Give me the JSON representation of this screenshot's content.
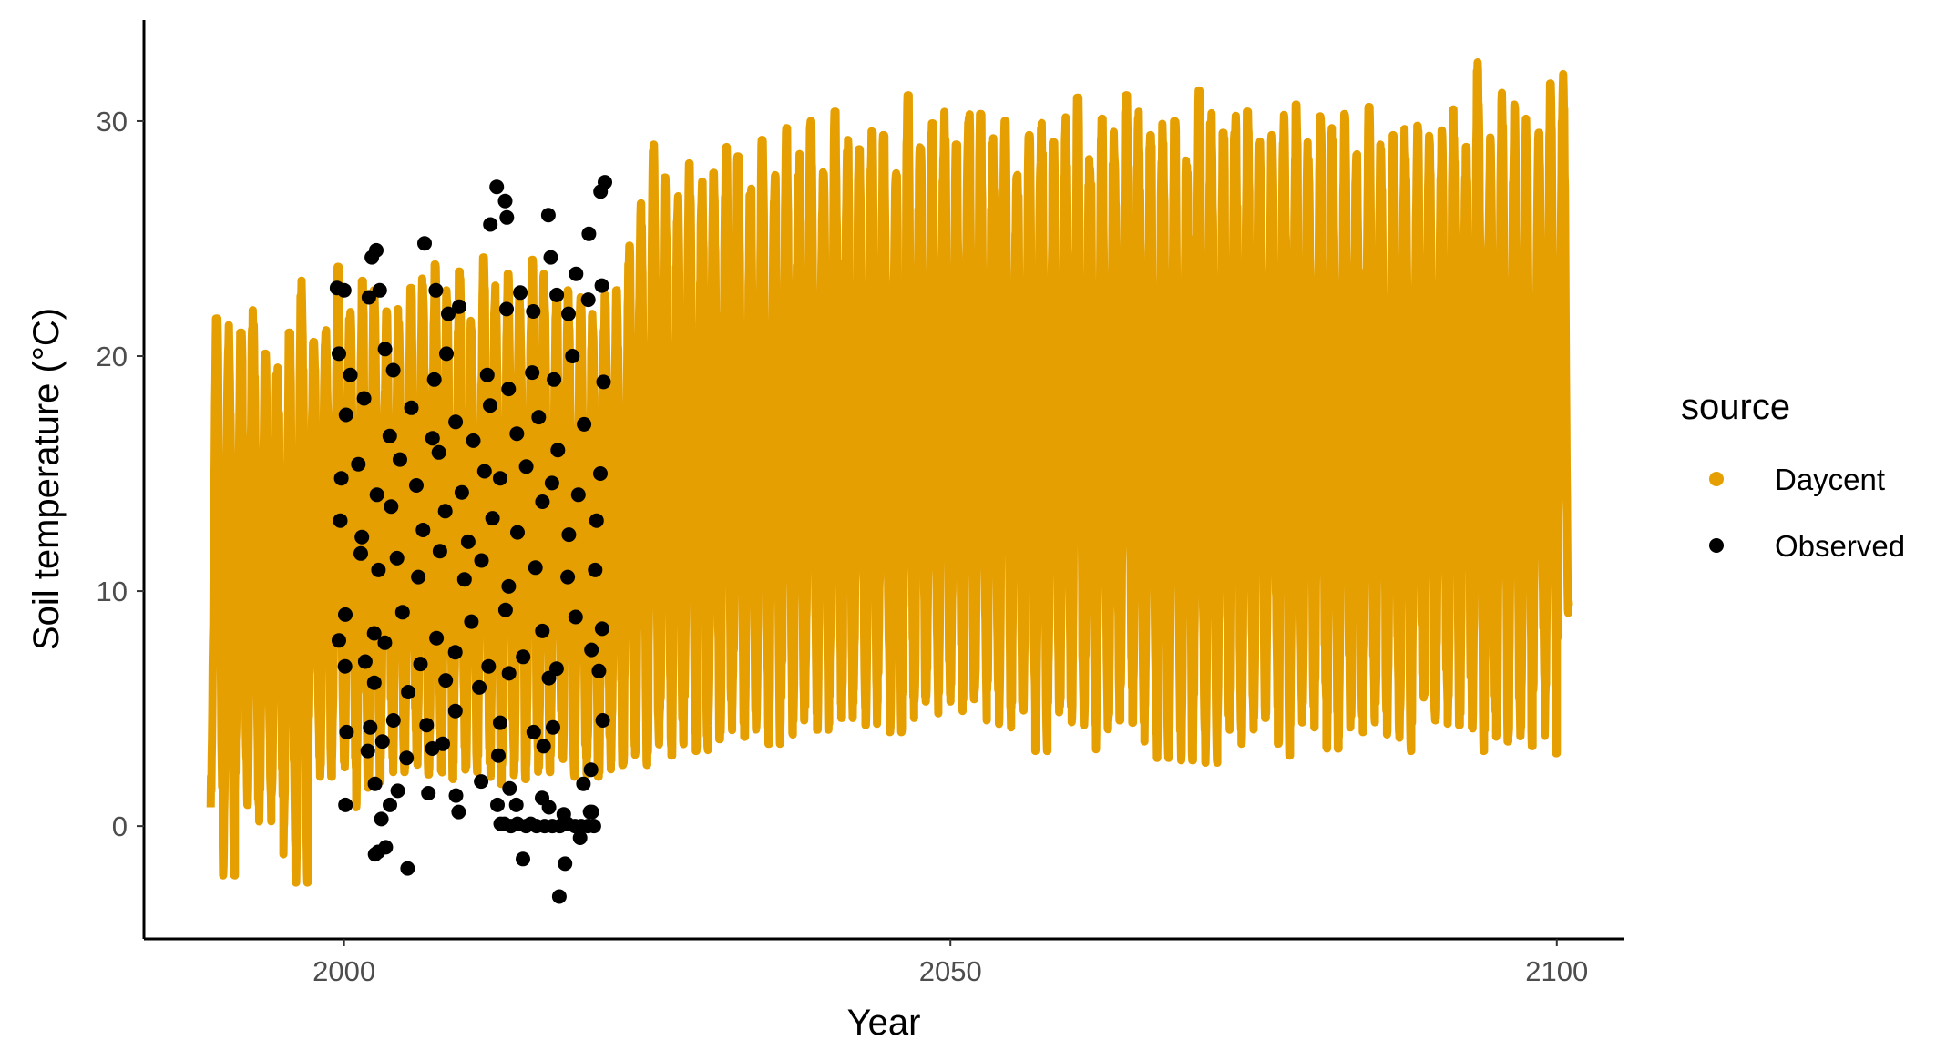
{
  "chart_data": {
    "type": "line",
    "xlabel": "Year",
    "ylabel": "Soil temperature (°C)",
    "xlim": [
      1983.5,
      2105.5
    ],
    "ylim": [
      -4.8,
      34.3
    ],
    "x_ticks": [
      2000,
      2050,
      2100
    ],
    "y_ticks": [
      0,
      10,
      20,
      30
    ],
    "x_tick_labels": [
      "2000",
      "2050",
      "2100"
    ],
    "y_tick_labels": [
      "0",
      "10",
      "20",
      "30"
    ],
    "grid": false,
    "legend": {
      "title": "source",
      "position": "right"
    },
    "series": [
      {
        "name": "Daycent",
        "color": "#E69F00",
        "kind": "daily seasonal line (yearly min/max envelope)",
        "x_start": 1989,
        "x_end": 2100,
        "yearly_min": [
          0.8,
          -2.1,
          1.5,
          0.9,
          0.2,
          1.3,
          -1.2,
          -2.4,
          2.4,
          2.1,
          2.7,
          2.5,
          0.8,
          1.9,
          2.9,
          2.3,
          2.5,
          2.2,
          2.4,
          2.0,
          2.7,
          2.3,
          3.0,
          1.8,
          2.6,
          2.0,
          2.6,
          2.3,
          3.0,
          2.2,
          2.1,
          2.1,
          2.3,
          2.6,
          2.7,
          2.6,
          3.1,
          3.4,
          3.0,
          3.9,
          3.2,
          3.7,
          4.0,
          4.4,
          3.8,
          4.2,
          3.5,
          3.9,
          4.5,
          4.8,
          4.1,
          5.2,
          4.6,
          5.0,
          4.3,
          5.5,
          4.0,
          4.6,
          5.3,
          4.8,
          5.6,
          4.9,
          5.4,
          4.5,
          5.8,
          4.2,
          5.0,
          4.7,
          3.2,
          4.4,
          5.1,
          4.1,
          4.3,
          3.1,
          4.5,
          5.2,
          4.4,
          3.6,
          2.9,
          3.2,
          2.8,
          3.4,
          2.7,
          3.9,
          4.1,
          3.5,
          4.6,
          4.8,
          3.0,
          4.3,
          5.1,
          4.2,
          3.3,
          3.8,
          4.7,
          4.0,
          4.9,
          3.9,
          3.2,
          4.4,
          4.5,
          4.6,
          4.3,
          4.8,
          3.2,
          4.1,
          3.6,
          3.8,
          3.4,
          5.8,
          3.1,
          8.0
        ],
        "yearly_max": [
          21.6,
          21.5,
          21.0,
          22.2,
          20.1,
          19.8,
          21.0,
          23.5,
          20.6,
          21.5,
          23.8,
          22.5,
          23.2,
          22.8,
          21.9,
          22.0,
          22.9,
          23.3,
          23.9,
          22.8,
          23.6,
          21.5,
          24.2,
          23.0,
          23.5,
          22.5,
          24.1,
          23.5,
          22.5,
          22.8,
          22.5,
          21.8,
          22.6,
          22.8,
          24.7,
          26.5,
          29.0,
          27.6,
          26.8,
          28.2,
          27.5,
          27.8,
          28.9,
          28.5,
          27.6,
          29.2,
          28.0,
          29.7,
          28.6,
          30.0,
          28.3,
          30.4,
          29.2,
          28.8,
          29.8,
          29.4,
          28.5,
          31.1,
          29.6,
          29.9,
          30.5,
          29.0,
          31.2,
          30.3,
          29.5,
          30.0,
          28.6,
          29.4,
          30.2,
          29.1,
          30.5,
          31.0,
          29.3,
          30.1,
          29.8,
          31.1,
          30.8,
          29.4,
          30.2,
          30.0,
          29.2,
          31.3,
          30.6,
          29.5,
          30.8,
          30.4,
          29.8,
          29.4,
          30.5,
          30.7,
          29.1,
          30.2,
          29.7,
          30.3,
          28.9,
          30.6,
          29.0,
          29.4,
          30.0,
          29.8,
          29.5,
          29.6,
          30.5,
          28.9,
          32.5,
          29.3,
          31.2,
          30.7,
          30.1,
          29.5,
          31.6,
          32.0
        ]
      },
      {
        "name": "Observed",
        "color": "#000000",
        "kind": "points",
        "points": [
          [
            2012.59,
            27.2
          ],
          [
            2013.29,
            26.6
          ],
          [
            2013.42,
            25.9
          ],
          [
            2012.06,
            25.6
          ],
          [
            2016.85,
            26.0
          ],
          [
            2021.51,
            27.4
          ],
          [
            2021.15,
            27.0
          ],
          [
            2020.19,
            25.2
          ],
          [
            2006.64,
            24.8
          ],
          [
            2002.29,
            24.2
          ],
          [
            2002.66,
            24.5
          ],
          [
            2017.04,
            24.2
          ],
          [
            1999.42,
            22.9
          ],
          [
            2000.01,
            22.8
          ],
          [
            2002.05,
            22.5
          ],
          [
            2002.94,
            22.8
          ],
          [
            2007.57,
            22.8
          ],
          [
            2008.59,
            21.8
          ],
          [
            2009.49,
            22.1
          ],
          [
            2013.4,
            22.0
          ],
          [
            2014.53,
            22.7
          ],
          [
            2015.6,
            21.9
          ],
          [
            2017.54,
            22.6
          ],
          [
            2019.13,
            23.5
          ],
          [
            2021.26,
            23.0
          ],
          [
            2020.14,
            22.4
          ],
          [
            2018.51,
            21.8
          ],
          [
            1999.58,
            20.1
          ],
          [
            2000.52,
            19.2
          ],
          [
            2003.38,
            20.3
          ],
          [
            2004.05,
            19.4
          ],
          [
            2007.44,
            19.0
          ],
          [
            2008.44,
            20.1
          ],
          [
            2011.81,
            19.2
          ],
          [
            2013.57,
            18.6
          ],
          [
            2015.52,
            19.3
          ],
          [
            2017.31,
            19.0
          ],
          [
            2018.83,
            20.0
          ],
          [
            2021.4,
            18.9
          ],
          [
            2000.16,
            17.5
          ],
          [
            2001.65,
            18.2
          ],
          [
            2003.77,
            16.6
          ],
          [
            2005.55,
            17.8
          ],
          [
            2007.3,
            16.5
          ],
          [
            2009.2,
            17.2
          ],
          [
            2010.66,
            16.4
          ],
          [
            2012.05,
            17.9
          ],
          [
            2014.25,
            16.7
          ],
          [
            2016.05,
            17.4
          ],
          [
            2017.63,
            16.0
          ],
          [
            2019.79,
            17.1
          ],
          [
            1999.77,
            14.8
          ],
          [
            2001.18,
            15.4
          ],
          [
            2002.71,
            14.1
          ],
          [
            2004.61,
            15.6
          ],
          [
            2005.96,
            14.5
          ],
          [
            2007.82,
            15.9
          ],
          [
            2009.71,
            14.2
          ],
          [
            2011.58,
            15.1
          ],
          [
            2012.87,
            14.8
          ],
          [
            2015.02,
            15.3
          ],
          [
            2017.15,
            14.6
          ],
          [
            2019.32,
            14.1
          ],
          [
            2021.14,
            15.0
          ],
          [
            1999.69,
            13.0
          ],
          [
            2001.47,
            12.3
          ],
          [
            2003.88,
            13.6
          ],
          [
            2006.51,
            12.6
          ],
          [
            2008.34,
            13.4
          ],
          [
            2010.24,
            12.1
          ],
          [
            2012.24,
            13.1
          ],
          [
            2014.3,
            12.5
          ],
          [
            2016.36,
            13.8
          ],
          [
            2018.54,
            12.4
          ],
          [
            2020.82,
            13.0
          ],
          [
            2001.38,
            11.6
          ],
          [
            2002.84,
            10.9
          ],
          [
            2004.36,
            11.4
          ],
          [
            2006.12,
            10.6
          ],
          [
            2007.91,
            11.7
          ],
          [
            2009.93,
            10.5
          ],
          [
            2011.33,
            11.3
          ],
          [
            2013.58,
            10.2
          ],
          [
            2015.78,
            11.0
          ],
          [
            2018.44,
            10.6
          ],
          [
            2020.71,
            10.9
          ],
          [
            2000.1,
            9.0
          ],
          [
            2002.48,
            8.2
          ],
          [
            2004.82,
            9.1
          ],
          [
            2007.62,
            8.0
          ],
          [
            2010.5,
            8.7
          ],
          [
            2013.32,
            9.2
          ],
          [
            2016.35,
            8.3
          ],
          [
            2019.09,
            8.9
          ],
          [
            2021.28,
            8.4
          ],
          [
            1999.58,
            7.9
          ],
          [
            2001.75,
            7.0
          ],
          [
            2003.36,
            7.8
          ],
          [
            2006.3,
            6.9
          ],
          [
            2009.17,
            7.4
          ],
          [
            2011.92,
            6.8
          ],
          [
            2014.77,
            7.2
          ],
          [
            2017.52,
            6.7
          ],
          [
            2020.4,
            7.5
          ],
          [
            2000.08,
            6.8
          ],
          [
            2002.49,
            6.1
          ],
          [
            2005.29,
            5.7
          ],
          [
            2008.38,
            6.2
          ],
          [
            2011.15,
            5.9
          ],
          [
            2013.6,
            6.5
          ],
          [
            2016.89,
            6.3
          ],
          [
            2021.02,
            6.6
          ],
          [
            2000.21,
            4.0
          ],
          [
            2002.15,
            4.2
          ],
          [
            2004.07,
            4.5
          ],
          [
            2006.81,
            4.3
          ],
          [
            2009.18,
            4.9
          ],
          [
            2012.87,
            4.4
          ],
          [
            2015.64,
            4.0
          ],
          [
            2017.23,
            4.2
          ],
          [
            2021.33,
            4.5
          ],
          [
            2001.96,
            3.2
          ],
          [
            2003.17,
            3.6
          ],
          [
            2005.15,
            2.9
          ],
          [
            2007.28,
            3.3
          ],
          [
            2008.14,
            3.5
          ],
          [
            2012.72,
            3.0
          ],
          [
            2016.46,
            3.4
          ],
          [
            2002.55,
            1.8
          ],
          [
            2004.43,
            1.5
          ],
          [
            2006.95,
            1.4
          ],
          [
            2009.23,
            1.3
          ],
          [
            2011.3,
            1.9
          ],
          [
            2013.65,
            1.6
          ],
          [
            2016.33,
            1.2
          ],
          [
            2019.74,
            1.8
          ],
          [
            2020.36,
            2.4
          ],
          [
            2000.12,
            0.9
          ],
          [
            2003.78,
            0.9
          ],
          [
            2009.45,
            0.6
          ],
          [
            2014.2,
            0.9
          ],
          [
            2016.9,
            0.8
          ],
          [
            2018.12,
            0.5
          ],
          [
            2020.29,
            0.6
          ],
          [
            2003.08,
            0.3
          ],
          [
            2012.91,
            0.1
          ],
          [
            2013.22,
            0.1
          ],
          [
            2013.76,
            0.0
          ],
          [
            2014.3,
            0.1
          ],
          [
            2015.01,
            0.0
          ],
          [
            2015.39,
            0.1
          ],
          [
            2015.87,
            0.0
          ],
          [
            2016.54,
            0.0
          ],
          [
            2017.18,
            0.0
          ],
          [
            2017.79,
            0.0
          ],
          [
            2018.42,
            0.1
          ],
          [
            2019.05,
            0.0
          ],
          [
            2019.56,
            0.0
          ],
          [
            2020.11,
            0.0
          ],
          [
            2020.6,
            0.0
          ],
          [
            2002.8,
            -1.1
          ],
          [
            2003.44,
            -0.9
          ],
          [
            2002.56,
            -1.2
          ],
          [
            2005.24,
            -1.8
          ],
          [
            2014.75,
            -1.4
          ],
          [
            2018.22,
            -1.6
          ],
          [
            2017.75,
            -3.0
          ],
          [
            2019.46,
            -0.5
          ],
          [
            2020.44,
            0.6
          ],
          [
            2012.65,
            0.9
          ]
        ]
      }
    ]
  }
}
